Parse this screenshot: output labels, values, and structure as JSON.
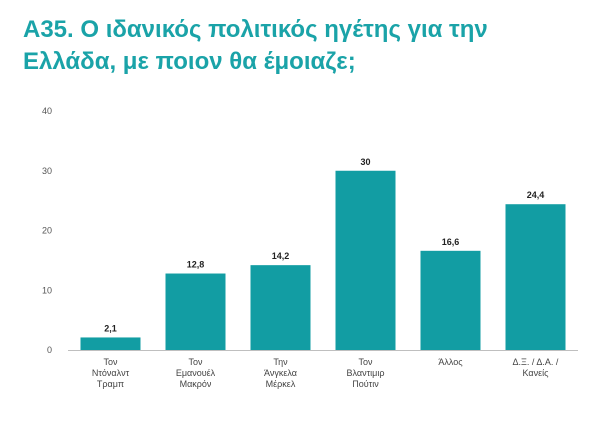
{
  "title_line1": "Α35. Ο ιδανικός πολιτικός ηγέτης για την",
  "title_line2": "Ελλάδα, με ποιον θα έμοιαζε;",
  "chart_data": {
    "type": "bar",
    "title": "Α35. Ο ιδανικός πολιτικός ηγέτης για την Ελλάδα, με ποιον θα έμοιαζε;",
    "categories": [
      [
        "Τον",
        "Ντόναλντ",
        "Τραμπ"
      ],
      [
        "Τον",
        "Εμανουέλ",
        "Μακρόν"
      ],
      [
        "Την",
        "Άνγκελα",
        "Μέρκελ"
      ],
      [
        "Τον",
        "Βλαντιμιρ",
        "Πούτιν"
      ],
      [
        "Άλλος"
      ],
      [
        "Δ.Ξ. / Δ.Α. /",
        "Κανείς"
      ]
    ],
    "values": [
      2.1,
      12.8,
      14.2,
      30,
      16.6,
      24.4
    ],
    "value_labels": [
      "2,1",
      "12,8",
      "14,2",
      "30",
      "16,6",
      "24,4"
    ],
    "ylim": [
      0,
      40
    ],
    "yticks": [
      0,
      10,
      20,
      30,
      40
    ],
    "xlabel": "",
    "ylabel": "",
    "grid": false,
    "bar_color": "#129da3"
  }
}
